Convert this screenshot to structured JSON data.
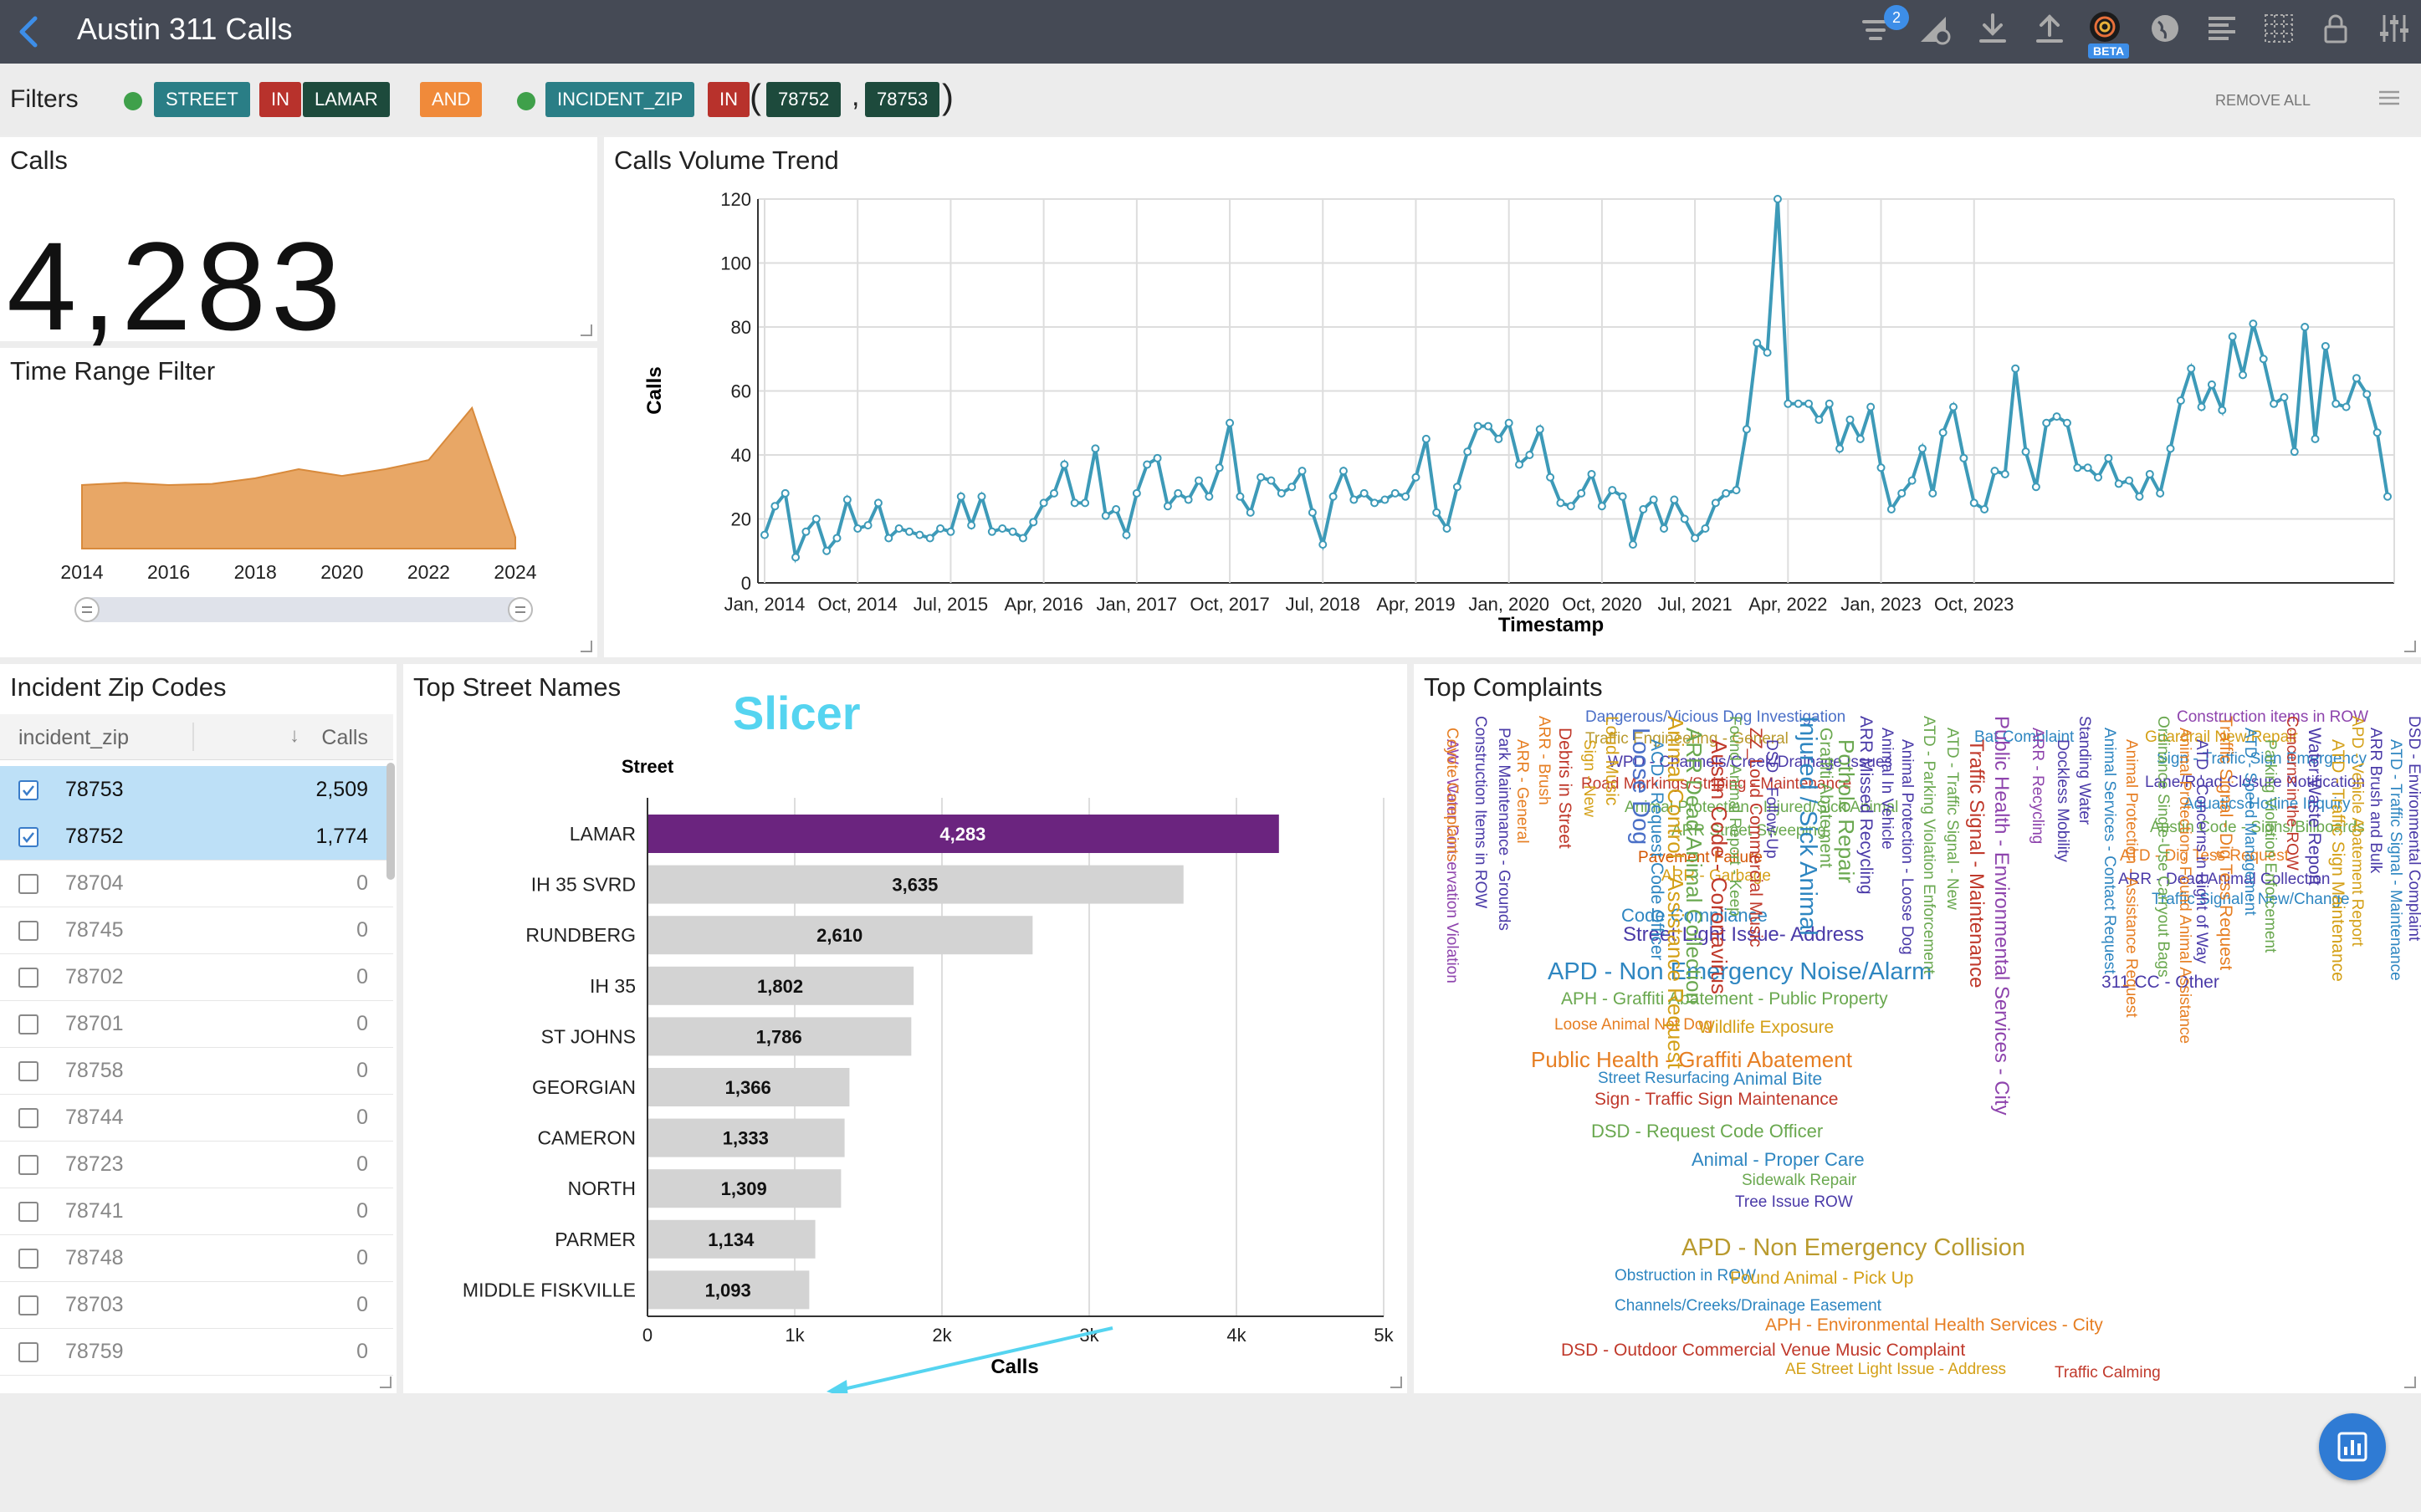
{
  "app": {
    "title": "Austin 311 Calls",
    "filter_badge": "2",
    "beta_label": "BETA"
  },
  "filters": {
    "label": "Filters",
    "remove_all": "REMOVE ALL",
    "f1_field": "STREET",
    "f1_op": "IN",
    "f1_value": "LAMAR",
    "conjunction": "AND",
    "f2_field": "INCIDENT_ZIP",
    "f2_op": "IN",
    "f2_values": [
      "78752",
      "78753"
    ]
  },
  "calls_kpi": {
    "title": "Calls",
    "value": "4,283"
  },
  "time_range": {
    "title": "Time Range Filter",
    "ticks": [
      "2014",
      "2016",
      "2018",
      "2020",
      "2022",
      "2024"
    ],
    "area": [
      [
        2014.0,
        28
      ],
      [
        2015.0,
        29
      ],
      [
        2016.0,
        28
      ],
      [
        2017.0,
        28.5
      ],
      [
        2018.0,
        31
      ],
      [
        2019.0,
        35
      ],
      [
        2020.0,
        32
      ],
      [
        2021.0,
        35
      ],
      [
        2022.0,
        39
      ],
      [
        2023.0,
        62
      ],
      [
        2024.0,
        5
      ]
    ]
  },
  "trend": {
    "title": "Calls Volume Trend",
    "ylabel": "Calls",
    "xlabel": "Timestamp",
    "yticks": [
      "0",
      "20",
      "40",
      "60",
      "80",
      "100",
      "120"
    ],
    "xticks": [
      "Jan, 2014",
      "Oct, 2014",
      "Jul, 2015",
      "Apr, 2016",
      "Jan, 2017",
      "Oct, 2017",
      "Jul, 2018",
      "Apr, 2019",
      "Jan, 2020",
      "Oct, 2020",
      "Jul, 2021",
      "Apr, 2022",
      "Jan, 2023",
      "Oct, 2023"
    ]
  },
  "chart_data": [
    {
      "type": "line",
      "title": "Calls Volume Trend",
      "xlabel": "Timestamp",
      "ylabel": "Calls",
      "ylim": [
        0,
        120
      ],
      "x_start": "Jan, 2014",
      "x_interval": "month",
      "values": [
        15,
        24,
        28,
        8,
        16,
        20,
        10,
        14,
        26,
        17,
        18,
        25,
        14,
        17,
        16,
        15,
        14,
        17,
        16,
        27,
        18,
        27,
        16,
        17,
        16,
        14,
        19,
        25,
        28,
        37,
        25,
        25,
        42,
        21,
        23,
        15,
        28,
        37,
        39,
        24,
        28,
        26,
        32,
        27,
        36,
        50,
        27,
        22,
        33,
        32,
        28,
        30,
        35,
        22,
        12,
        27,
        35,
        26,
        28,
        25,
        26,
        28,
        27,
        33,
        45,
        22,
        17,
        30,
        41,
        49,
        49,
        45,
        50,
        37,
        40,
        48,
        33,
        25,
        24,
        28,
        34,
        24,
        29,
        27,
        12,
        23,
        26,
        17,
        26,
        20,
        14,
        17,
        25,
        28,
        29,
        48,
        75,
        72,
        120,
        56,
        56,
        56,
        51,
        56,
        42,
        51,
        45,
        55,
        36,
        23,
        28,
        32,
        42,
        28,
        47,
        55,
        39,
        25,
        23,
        35,
        34,
        67,
        41,
        30,
        50,
        52,
        50,
        36,
        36,
        33,
        39,
        31,
        32,
        27,
        34,
        28,
        42,
        57,
        67,
        55,
        62,
        54,
        77,
        65,
        81,
        70,
        56,
        58,
        41,
        80,
        45,
        74,
        56,
        55,
        64,
        59,
        47,
        27
      ]
    },
    {
      "type": "bar",
      "orientation": "horizontal",
      "title": "Top Street Names",
      "xlabel": "Calls",
      "ylabel": "Street",
      "xlim": [
        0,
        5000
      ],
      "xticks": [
        "0",
        "1k",
        "2k",
        "3k",
        "4k",
        "5k"
      ],
      "categories": [
        "LAMAR",
        "IH 35 SVRD",
        "RUNDBERG",
        "IH 35",
        "ST JOHNS",
        "GEORGIAN",
        "CAMERON",
        "NORTH",
        "PARMER",
        "MIDDLE FISKVILLE"
      ],
      "values": [
        4283,
        3635,
        2610,
        1802,
        1786,
        1366,
        1333,
        1309,
        1134,
        1093
      ],
      "labels": [
        "4,283",
        "3,635",
        "2,610",
        "1,802",
        "1,786",
        "1,366",
        "1,333",
        "1,309",
        "1,134",
        "1,093"
      ],
      "highlight_color": "#6b247f",
      "bar_color": "#d3d3d3"
    }
  ],
  "zip_table": {
    "title": "Incident Zip Codes",
    "col_zip": "incident_zip",
    "col_calls": "Calls",
    "rows": [
      {
        "zip": "78753",
        "calls": "2,509",
        "selected": true
      },
      {
        "zip": "78752",
        "calls": "1,774",
        "selected": true
      },
      {
        "zip": "78704",
        "calls": "0",
        "selected": false
      },
      {
        "zip": "78745",
        "calls": "0",
        "selected": false
      },
      {
        "zip": "78702",
        "calls": "0",
        "selected": false
      },
      {
        "zip": "78701",
        "calls": "0",
        "selected": false
      },
      {
        "zip": "78758",
        "calls": "0",
        "selected": false
      },
      {
        "zip": "78744",
        "calls": "0",
        "selected": false
      },
      {
        "zip": "78723",
        "calls": "0",
        "selected": false
      },
      {
        "zip": "78741",
        "calls": "0",
        "selected": false
      },
      {
        "zip": "78748",
        "calls": "0",
        "selected": false
      },
      {
        "zip": "78703",
        "calls": "0",
        "selected": false
      },
      {
        "zip": "78759",
        "calls": "0",
        "selected": false
      }
    ]
  },
  "streets": {
    "title": "Top Street Names",
    "annotation": "Slicer"
  },
  "complaints": {
    "title": "Top Complaints",
    "words": [
      {
        "t": "Dangerous/Vicious Dog Investigation",
        "c": "#4a6fc7",
        "s": 19
      },
      {
        "t": "Traffic Engineering - General",
        "c": "#b99a2e",
        "s": 19
      },
      {
        "t": "WPD - Channels/Creek/Drainage Issues",
        "c": "#4a3aa8",
        "s": 19
      },
      {
        "t": "Road Markings/Striping - Maintenance",
        "c": "#c0392b",
        "s": 19
      },
      {
        "t": "Animal Protection - Injured/Sick Animal",
        "c": "#6aa84f",
        "s": 19
      },
      {
        "t": "ARR Street Sweeping",
        "c": "#6aa84f",
        "s": 19
      },
      {
        "t": "Pavement Failure",
        "c": "#d35400",
        "s": 19
      },
      {
        "t": "ARR - Garbage",
        "c": "#d4a017",
        "s": 19
      },
      {
        "t": "Code Compliance",
        "c": "#2e86c1",
        "s": 22
      },
      {
        "t": "Street Light Issue- Address",
        "c": "#4a3aa8",
        "s": 24
      },
      {
        "t": "APD - Non Emergency Noise/Alarm",
        "c": "#2e86c1",
        "s": 29
      },
      {
        "t": "APH - Graffiti Abatement - Public Property",
        "c": "#6aa84f",
        "s": 21
      },
      {
        "t": "Loose Animal Not Dog",
        "c": "#e67e22",
        "s": 19
      },
      {
        "t": "Wildlife Exposure",
        "c": "#d4a017",
        "s": 21
      },
      {
        "t": "Public Health - Graffiti Abatement",
        "c": "#e67e22",
        "s": 26
      },
      {
        "t": "Street Resurfacing",
        "c": "#2e86c1",
        "s": 19
      },
      {
        "t": "Animal Bite",
        "c": "#2e86c1",
        "s": 21
      },
      {
        "t": "Sign - Traffic Sign Maintenance",
        "c": "#c0392b",
        "s": 21
      },
      {
        "t": "DSD - Request Code Officer",
        "c": "#6aa84f",
        "s": 22
      },
      {
        "t": "Animal - Proper Care",
        "c": "#2e86c1",
        "s": 22
      },
      {
        "t": "Sidewalk Repair",
        "c": "#6aa84f",
        "s": 19
      },
      {
        "t": "Tree Issue ROW",
        "c": "#4a3aa8",
        "s": 19
      },
      {
        "t": "APD - Non Emergency Collision",
        "c": "#b99a2e",
        "s": 29
      },
      {
        "t": "Obstruction in ROW",
        "c": "#2e86c1",
        "s": 19
      },
      {
        "t": "Found Animal - Pick Up",
        "c": "#d4a017",
        "s": 21
      },
      {
        "t": "Channels/Creeks/Drainage Easement",
        "c": "#2e86c1",
        "s": 19
      },
      {
        "t": "APH - Environmental Health Services - City",
        "c": "#e67e22",
        "s": 21
      },
      {
        "t": "DSD - Outdoor Commercial Venue Music Complaint",
        "c": "#c0392b",
        "s": 21
      },
      {
        "t": "AE Street Light Issue - Address",
        "c": "#d4a017",
        "s": 19
      },
      {
        "t": "Traffic Calming",
        "c": "#c0392b",
        "s": 19
      },
      {
        "t": "Bat Complaint",
        "c": "#2e86c1",
        "s": 19
      },
      {
        "t": "Construction items in ROW",
        "c": "#8e44ad",
        "s": 19
      },
      {
        "t": "Guardrail New/Repair",
        "c": "#d4a017",
        "s": 19
      },
      {
        "t": "Sign - Traffic Sign Emergency",
        "c": "#2e86c1",
        "s": 19
      },
      {
        "t": "Lane/Road Closure Notification",
        "c": "#4a3aa8",
        "s": 19
      },
      {
        "t": "Aquatics Hotline Inquiry",
        "c": "#2e86c1",
        "s": 19
      },
      {
        "t": "Austin Code - Signs/Billboards",
        "c": "#6aa84f",
        "s": 19
      },
      {
        "t": "ATD - Dig Tess Request",
        "c": "#e67e22",
        "s": 19
      },
      {
        "t": "ARR - Dead Animal Collection",
        "c": "#4a3aa8",
        "s": 19
      },
      {
        "t": "Traffic Signal - New/Change",
        "c": "#2e86c1",
        "s": 19
      },
      {
        "t": "311 CC - Other",
        "c": "#4a3aa8",
        "s": 21
      },
      {
        "t": "AW - Water Conservation Violation",
        "c": "#8e44ad",
        "s": 19,
        "v": 1
      },
      {
        "t": "Construction Items in ROW",
        "c": "#4a3aa8",
        "s": 19,
        "v": 1
      },
      {
        "t": "Park Maintenance - Grounds",
        "c": "#4a3aa8",
        "s": 19,
        "v": 1
      },
      {
        "t": "ARR - General",
        "c": "#e67e22",
        "s": 19,
        "v": 1
      },
      {
        "t": "ARR - Brush",
        "c": "#e67e22",
        "s": 19,
        "v": 1
      },
      {
        "t": "Debris in Street",
        "c": "#c0392b",
        "s": 21,
        "v": 1
      },
      {
        "t": "Sign - New",
        "c": "#d4a017",
        "s": 19,
        "v": 1
      },
      {
        "t": "Loud Music",
        "c": "#d4a017",
        "s": 21,
        "v": 1
      },
      {
        "t": "Loose Dog",
        "c": "#4a6fc7",
        "s": 29,
        "v": 1
      },
      {
        "t": "ACD - Request Code Officer",
        "c": "#2e86c1",
        "s": 21,
        "v": 1
      },
      {
        "t": "Animal Control - Assistance Request",
        "c": "#d4a017",
        "s": 26,
        "v": 1
      },
      {
        "t": "ARR Dead Animal Collection",
        "c": "#6aa84f",
        "s": 26,
        "v": 1
      },
      {
        "t": "Austin Code - Coronavirus",
        "c": "#c0392b",
        "s": 26,
        "v": 1
      },
      {
        "t": "Found Animal Report - Keep",
        "c": "#6aa84f",
        "s": 19,
        "v": 1
      },
      {
        "t": "ZZ_Loud Commercial Music",
        "c": "#c0392b",
        "s": 21,
        "v": 1
      },
      {
        "t": "DSD - Follow-Up",
        "c": "#4a3aa8",
        "s": 19,
        "v": 1
      },
      {
        "t": "Injured / Sick Animal",
        "c": "#2e86c1",
        "s": 29,
        "v": 1
      },
      {
        "t": "Graffiti Abatement",
        "c": "#6aa84f",
        "s": 21,
        "v": 1
      },
      {
        "t": "Pothole Repair",
        "c": "#6aa84f",
        "s": 26,
        "v": 1
      },
      {
        "t": "ARR Missed Recycling",
        "c": "#4a3aa8",
        "s": 21,
        "v": 1
      },
      {
        "t": "Animal In Vehicle",
        "c": "#4a3aa8",
        "s": 19,
        "v": 1
      },
      {
        "t": "Animal Protection - Loose Dog",
        "c": "#4a3aa8",
        "s": 19,
        "v": 1
      },
      {
        "t": "ATD - Parking Violation Enforcement",
        "c": "#6aa84f",
        "s": 19,
        "v": 1
      },
      {
        "t": "ATD - Traffic Signal - New",
        "c": "#6aa84f",
        "s": 19,
        "v": 1
      },
      {
        "t": "Traffic Signal - Maintenance",
        "c": "#c0392b",
        "s": 24,
        "v": 1
      },
      {
        "t": "Public Health - Environmental Services - City",
        "c": "#8e44ad",
        "s": 24,
        "v": 1
      },
      {
        "t": "ARR - Recycling",
        "c": "#8e44ad",
        "s": 19,
        "v": 1
      },
      {
        "t": "Dockless Mobility",
        "c": "#4a3aa8",
        "s": 19,
        "v": 1
      },
      {
        "t": "Standing Water",
        "c": "#4a3aa8",
        "s": 19,
        "v": 1
      },
      {
        "t": "Animal Services - Contact Request",
        "c": "#2e86c1",
        "s": 19,
        "v": 1
      },
      {
        "t": "Animal Protection - Assistance Request",
        "c": "#e67e22",
        "s": 19,
        "v": 1
      },
      {
        "t": "Ordinance Single-Use Carryout Bags",
        "c": "#6aa84f",
        "s": 19,
        "v": 1
      },
      {
        "t": "Animal Protection - Found Animal Assistance",
        "c": "#e67e22",
        "s": 19,
        "v": 1
      },
      {
        "t": "ATD - Concerns in Right of Way",
        "c": "#4a3aa8",
        "s": 19,
        "v": 1
      },
      {
        "t": "Traffic Signal - Dig Tess Request",
        "c": "#e67e22",
        "s": 21,
        "v": 1
      },
      {
        "t": "ATD - Speed Management",
        "c": "#2e86c1",
        "s": 19,
        "v": 1
      },
      {
        "t": "Parking Violation Enforcement",
        "c": "#6aa84f",
        "s": 19,
        "v": 1
      },
      {
        "t": "Concerns in the ROW",
        "c": "#c0392b",
        "s": 19,
        "v": 1
      },
      {
        "t": "Water Waste Report",
        "c": "#4a3aa8",
        "s": 21,
        "v": 1
      },
      {
        "t": "ATD - Traffic Sign Maintenance",
        "c": "#d4a017",
        "s": 21,
        "v": 1
      },
      {
        "t": "APD - Vehicle Abatement Report",
        "c": "#d4a017",
        "s": 19,
        "v": 1
      },
      {
        "t": "ARR Brush and Bulk",
        "c": "#4a3aa8",
        "s": 19,
        "v": 1
      },
      {
        "t": "ATD - Traffic Signal - Maintenance",
        "c": "#2e86c1",
        "s": 19,
        "v": 1
      },
      {
        "t": "DSD - Environmental Complaint",
        "c": "#4a3aa8",
        "s": 19,
        "v": 1
      },
      {
        "t": "Coyote Complaints",
        "c": "#e67e22",
        "s": 19,
        "v": 1
      }
    ]
  }
}
